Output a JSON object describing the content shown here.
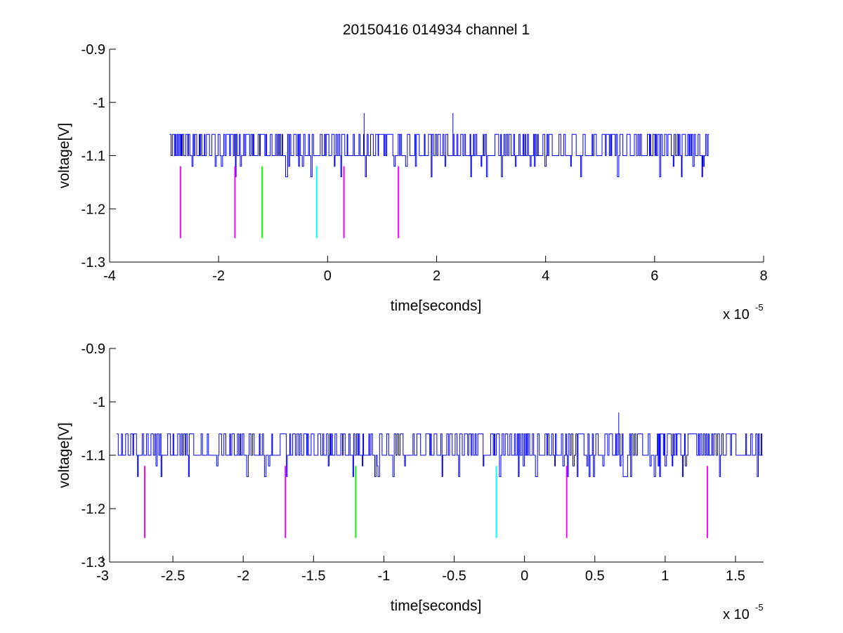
{
  "figure_title": "20150416 014934 channel 1",
  "colors": {
    "background": "#ffffff",
    "axes": "#000000",
    "signal": "#0000ff",
    "marker_magenta": "#ff00ff",
    "marker_green": "#00ff00",
    "marker_cyan": "#00ffff"
  },
  "chart_data": [
    {
      "type": "line",
      "title": "20150416 014934 channel 1",
      "xlabel": "time[seconds]",
      "ylabel": "voltage[V]",
      "x_exponent_label": "x 10",
      "x_exponent": "-5",
      "xlim": [
        -4,
        8
      ],
      "ylim": [
        -1.3,
        -0.9
      ],
      "grid": false,
      "xticks": [
        -4,
        -2,
        0,
        2,
        4,
        6,
        8
      ],
      "xtick_labels": [
        "-4",
        "-2",
        "0",
        "2",
        "4",
        "6",
        "8"
      ],
      "yticks": [
        -1.3,
        -1.2,
        -1.1,
        -1.0,
        -0.9
      ],
      "ytick_labels": [
        "-1.3",
        "-1.2",
        "-1.1",
        "-1",
        "-0.9"
      ],
      "signal": {
        "x_range": [
          -2.9,
          7.0
        ],
        "baseline": -1.1,
        "high_level": -1.06,
        "low_level": -1.14,
        "spikes": [
          {
            "x": 0.67,
            "y": -1.02
          },
          {
            "x": 2.3,
            "y": -1.02
          }
        ]
      },
      "markers": [
        {
          "x": -2.7,
          "y_top": -1.12,
          "y_bottom": -1.255,
          "color": "magenta"
        },
        {
          "x": -1.7,
          "y_top": -1.12,
          "y_bottom": -1.255,
          "color": "magenta"
        },
        {
          "x": -1.2,
          "y_top": -1.12,
          "y_bottom": -1.255,
          "color": "green"
        },
        {
          "x": -0.2,
          "y_top": -1.12,
          "y_bottom": -1.255,
          "color": "cyan"
        },
        {
          "x": 0.3,
          "y_top": -1.12,
          "y_bottom": -1.255,
          "color": "magenta"
        },
        {
          "x": 1.3,
          "y_top": -1.12,
          "y_bottom": -1.255,
          "color": "magenta"
        }
      ]
    },
    {
      "type": "line",
      "xlabel": "time[seconds]",
      "ylabel": "voltage[V]",
      "x_exponent_label": "x 10",
      "x_exponent": "-5",
      "xlim": [
        -2.95,
        1.7
      ],
      "ylim": [
        -1.3,
        -0.9
      ],
      "grid": false,
      "xticks": [
        -3,
        -2.5,
        -2,
        -1.5,
        -1,
        -0.5,
        0,
        0.5,
        1,
        1.5
      ],
      "xtick_labels": [
        "-3",
        "-2.5",
        "-2",
        "-1.5",
        "-1",
        "-0.5",
        "0",
        "0.5",
        "1",
        "1.5"
      ],
      "yticks": [
        -1.3,
        -1.2,
        -1.1,
        -1.0,
        -0.9
      ],
      "ytick_labels": [
        "-1.3",
        "-1.2",
        "-1.1",
        "-1",
        "-0.9"
      ],
      "signal": {
        "x_range": [
          -2.9,
          1.7
        ],
        "baseline": -1.1,
        "high_level": -1.06,
        "low_level": -1.14,
        "spikes": [
          {
            "x": 0.67,
            "y": -1.02
          }
        ]
      },
      "markers": [
        {
          "x": -2.7,
          "y_top": -1.12,
          "y_bottom": -1.255,
          "color": "magenta"
        },
        {
          "x": -1.7,
          "y_top": -1.12,
          "y_bottom": -1.255,
          "color": "magenta"
        },
        {
          "x": -1.2,
          "y_top": -1.12,
          "y_bottom": -1.255,
          "color": "green"
        },
        {
          "x": -0.2,
          "y_top": -1.12,
          "y_bottom": -1.255,
          "color": "cyan"
        },
        {
          "x": 0.3,
          "y_top": -1.12,
          "y_bottom": -1.255,
          "color": "magenta"
        },
        {
          "x": 1.3,
          "y_top": -1.12,
          "y_bottom": -1.255,
          "color": "magenta"
        }
      ]
    }
  ]
}
